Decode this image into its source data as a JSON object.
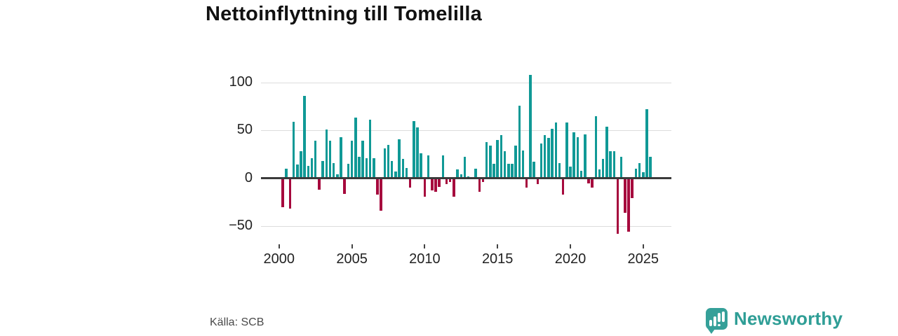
{
  "title": "Nettoinflyttning till Tomelilla",
  "source": "Källa: SCB",
  "logo": {
    "text": "Newsworthy",
    "badge_color": "#35a099",
    "text_color": "#2f9e96"
  },
  "colors": {
    "positive": "#109996",
    "negative": "#a6093d",
    "grid": "#dcdcdc",
    "zero_line": "#3b3b3b",
    "axis_text": "#222222"
  },
  "chart_data": {
    "type": "bar",
    "title": "Nettoinflyttning till Tomelilla",
    "xlabel": "",
    "ylabel": "",
    "x_start": "2000 Q2",
    "frequency": "quarterly",
    "ylim": [
      -60,
      112
    ],
    "grid": "horizontal",
    "y_ticks": [
      {
        "label": "100",
        "value": 100
      },
      {
        "label": "50",
        "value": 50
      },
      {
        "label": "0",
        "value": 0
      },
      {
        "label": "−50",
        "value": -50
      }
    ],
    "x_ticks": [
      {
        "label": "2000",
        "index": -1
      },
      {
        "label": "2005",
        "index": 19
      },
      {
        "label": "2010",
        "index": 39
      },
      {
        "label": "2015",
        "index": 59
      },
      {
        "label": "2020",
        "index": 79
      },
      {
        "label": "2025",
        "index": 99
      }
    ],
    "values": [
      -29,
      10,
      -31,
      59,
      14,
      28,
      86,
      13,
      21,
      39,
      -11,
      18,
      51,
      39,
      16,
      4,
      43,
      -15,
      15,
      39,
      63,
      22,
      39,
      21,
      61,
      21,
      -16,
      -33,
      31,
      35,
      18,
      7,
      41,
      20,
      11,
      -9,
      60,
      53,
      26,
      -18,
      24,
      -12,
      -13,
      -8,
      24,
      -5,
      -3,
      -18,
      9,
      4,
      22,
      2,
      1,
      10,
      -13,
      -3,
      38,
      34,
      15,
      40,
      45,
      28,
      15,
      15,
      34,
      76,
      29,
      -9,
      108,
      17,
      -5,
      36,
      45,
      42,
      52,
      58,
      16,
      -16,
      58,
      12,
      48,
      43,
      8,
      46,
      -4,
      -9,
      65,
      9,
      20,
      54,
      28,
      28,
      -57,
      22,
      -35,
      -55,
      -20,
      10,
      16,
      6,
      72,
      22
    ]
  },
  "layout_note": ""
}
